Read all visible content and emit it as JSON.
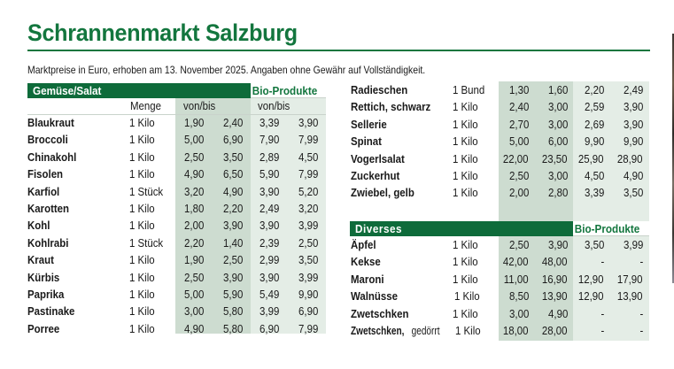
{
  "title": "Schrannenmarkt Salzburg",
  "subtitle": "Marktpreise in Euro, erhoben am 13. November 2025. Angaben ohne Gewähr auf Vollständigkeit.",
  "colors": {
    "brand_green": "#13763e",
    "header_bar": "#0e6b3a",
    "conventional_shade": "#cddcd0",
    "bio_shade": "#e4ede6"
  },
  "left_table": {
    "section_label": "Gemüse/Salat",
    "bio_label": "Bio-Produkte",
    "col_menge": "Menge",
    "col_conv": "von/bis",
    "col_bio": "von/bis",
    "rows": [
      {
        "name": "Blaukraut",
        "qty": "1 Kilo",
        "von": "1,90",
        "bis": "2,40",
        "bio_von": "3,39",
        "bio_bis": "3,90"
      },
      {
        "name": "Broccoli",
        "qty": "1 Kilo",
        "von": "5,00",
        "bis": "6,90",
        "bio_von": "7,90",
        "bio_bis": "7,99"
      },
      {
        "name": "Chinakohl",
        "qty": "1 Kilo",
        "von": "2,50",
        "bis": "3,50",
        "bio_von": "2,89",
        "bio_bis": "4,50"
      },
      {
        "name": "Fisolen",
        "qty": "1 Kilo",
        "von": "4,90",
        "bis": "6,50",
        "bio_von": "5,90",
        "bio_bis": "7,99"
      },
      {
        "name": "Karfiol",
        "qty": "1 Stück",
        "von": "3,20",
        "bis": "4,90",
        "bio_von": "3,90",
        "bio_bis": "5,20"
      },
      {
        "name": "Karotten",
        "qty": "1 Kilo",
        "von": "1,80",
        "bis": "2,20",
        "bio_von": "2,49",
        "bio_bis": "3,20"
      },
      {
        "name": "Kohl",
        "qty": "1 Kilo",
        "von": "2,00",
        "bis": "3,90",
        "bio_von": "3,90",
        "bio_bis": "3,99"
      },
      {
        "name": "Kohlrabi",
        "qty": "1 Stück",
        "von": "2,20",
        "bis": "1,40",
        "bio_von": "2,39",
        "bio_bis": "2,50"
      },
      {
        "name": "Kraut",
        "qty": "1 Kilo",
        "von": "1,90",
        "bis": "2,50",
        "bio_von": "2,99",
        "bio_bis": "3,50"
      },
      {
        "name": "Kürbis",
        "qty": "1 Kilo",
        "von": "2,50",
        "bis": "3,90",
        "bio_von": "3,90",
        "bio_bis": "3,99"
      },
      {
        "name": "Paprika",
        "qty": "1 Kilo",
        "von": "5,00",
        "bis": "5,90",
        "bio_von": "5,49",
        "bio_bis": "9,90"
      },
      {
        "name": "Pastinake",
        "qty": "1 Kilo",
        "von": "3,00",
        "bis": "5,80",
        "bio_von": "3,99",
        "bio_bis": "6,90"
      },
      {
        "name": "Porree",
        "qty": "1 Kilo",
        "von": "4,90",
        "bis": "5,80",
        "bio_von": "6,90",
        "bio_bis": "7,99"
      }
    ]
  },
  "right_table": {
    "rows": [
      {
        "name": "Radieschen",
        "qty": "1 Bund",
        "von": "1,30",
        "bis": "1,60",
        "bio_von": "2,20",
        "bio_bis": "2,49"
      },
      {
        "name": "Rettich, schwarz",
        "qty": "1 Kilo",
        "von": "2,40",
        "bis": "3,00",
        "bio_von": "2,59",
        "bio_bis": "3,90"
      },
      {
        "name": "Sellerie",
        "qty": "1 Kilo",
        "von": "2,70",
        "bis": "3,00",
        "bio_von": "2,69",
        "bio_bis": "3,90"
      },
      {
        "name": "Spinat",
        "qty": "1 Kilo",
        "von": "5,00",
        "bis": "6,00",
        "bio_von": "9,90",
        "bio_bis": "9,90"
      },
      {
        "name": "Vogerlsalat",
        "qty": "1 Kilo",
        "von": "22,00",
        "bis": "23,50",
        "bio_von": "25,90",
        "bio_bis": "28,90"
      },
      {
        "name": "Zuckerhut",
        "qty": "1 Kilo",
        "von": "2,50",
        "bis": "3,00",
        "bio_von": "4,50",
        "bio_bis": "4,90"
      },
      {
        "name": "Zwiebel, gelb",
        "qty": "1 Kilo",
        "von": "2,00",
        "bis": "2,80",
        "bio_von": "3,39",
        "bio_bis": "3,50"
      }
    ],
    "diverses": {
      "section_label": "Diverses",
      "bio_label": "Bio-Produkte",
      "rows": [
        {
          "name": "Äpfel",
          "name_suffix": "",
          "qty": "1 Kilo",
          "von": "2,50",
          "bis": "3,90",
          "bio_von": "3,50",
          "bio_bis": "3,99"
        },
        {
          "name": "Kekse",
          "name_suffix": "",
          "qty": "1 Kilo",
          "von": "42,00",
          "bis": "48,00",
          "bio_von": "-",
          "bio_bis": "-"
        },
        {
          "name": "Maroni",
          "name_suffix": "",
          "qty": "1 Kilo",
          "von": "11,00",
          "bis": "16,90",
          "bio_von": "12,90",
          "bio_bis": "17,90"
        },
        {
          "name": "Walnüsse",
          "name_suffix": "",
          "qty": "1 Kilo",
          "von": "8,50",
          "bis": "13,90",
          "bio_von": "12,90",
          "bio_bis": "13,90"
        },
        {
          "name": "Zwetschken",
          "name_suffix": "",
          "qty": "1 Kilo",
          "von": "3,00",
          "bis": "4,90",
          "bio_von": "-",
          "bio_bis": "-"
        },
        {
          "name": "Zwetschken,",
          "name_suffix": " gedörrt",
          "qty": "1 Kilo",
          "von": "18,00",
          "bis": "28,00",
          "bio_von": "-",
          "bio_bis": "-"
        }
      ]
    }
  }
}
